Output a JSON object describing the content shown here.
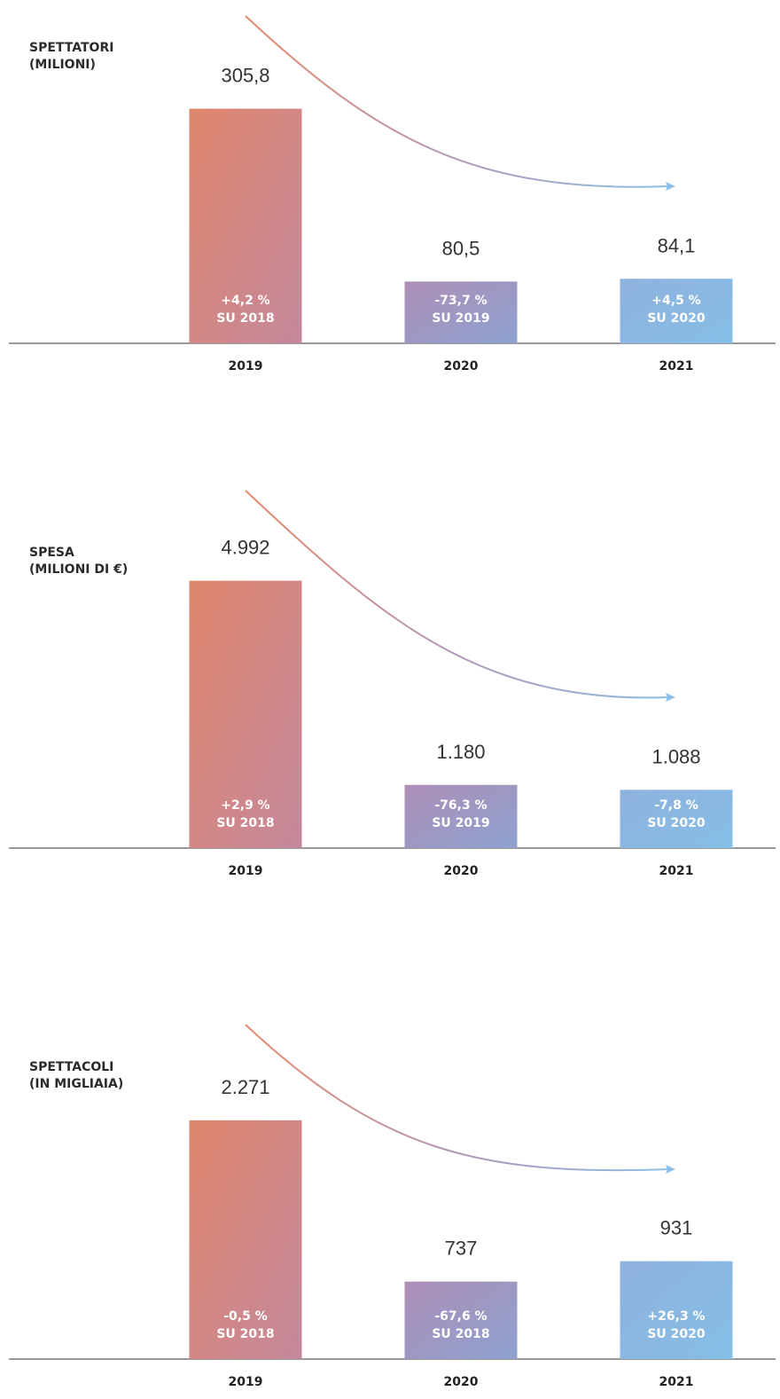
{
  "chart_data": [
    {
      "type": "bar",
      "title_lines": [
        "SPETTATORI",
        "(MILIONI)"
      ],
      "categories": [
        "2019",
        "2020",
        "2021"
      ],
      "values": [
        305.8,
        80.5,
        84.1
      ],
      "value_labels": [
        "305,8",
        "80,5",
        "84,1"
      ],
      "changes": [
        "+4,2 %",
        "-73,7 %",
        "+4,5 %"
      ],
      "bases": [
        "SU 2018",
        "SU 2019",
        "SU 2020"
      ],
      "colors": [
        [
          "#e0866d",
          "#c4889c"
        ],
        [
          "#ad8fb6",
          "#8ea1d0"
        ],
        [
          "#8fb2de",
          "#85bee6"
        ]
      ],
      "ylim": [
        0,
        370
      ]
    },
    {
      "type": "bar",
      "title_lines": [
        "SPESA",
        "(MILIONI DI €)"
      ],
      "categories": [
        "2019",
        "2020",
        "2021"
      ],
      "values": [
        4992,
        1180,
        1088
      ],
      "value_labels": [
        "4.992",
        "1.180",
        "1.088"
      ],
      "changes": [
        "+2,9 %",
        "-76,3 %",
        "-7,8 %"
      ],
      "bases": [
        "SU 2018",
        "SU 2019",
        "SU 2020"
      ],
      "colors": [
        [
          "#e0866d",
          "#c4889c"
        ],
        [
          "#ad8fb6",
          "#8ea1d0"
        ],
        [
          "#8fb2de",
          "#85bee6"
        ]
      ],
      "ylim": [
        0,
        5300
      ]
    },
    {
      "type": "bar",
      "title_lines": [
        "SPETTACOLI",
        "(IN MIGLIAIA)"
      ],
      "categories": [
        "2019",
        "2020",
        "2021"
      ],
      "values": [
        2271,
        737,
        931
      ],
      "value_labels": [
        "2.271",
        "737",
        "931"
      ],
      "changes": [
        "-0,5 %",
        "-67,6 %",
        "+26,3 %"
      ],
      "bases": [
        "SU 2018",
        "SU 2018",
        "SU 2020"
      ],
      "colors": [
        [
          "#e0866d",
          "#c4889c"
        ],
        [
          "#ad8fb6",
          "#8ea1d0"
        ],
        [
          "#8fb2de",
          "#85bee6"
        ]
      ],
      "ylim": [
        0,
        2700
      ]
    }
  ]
}
